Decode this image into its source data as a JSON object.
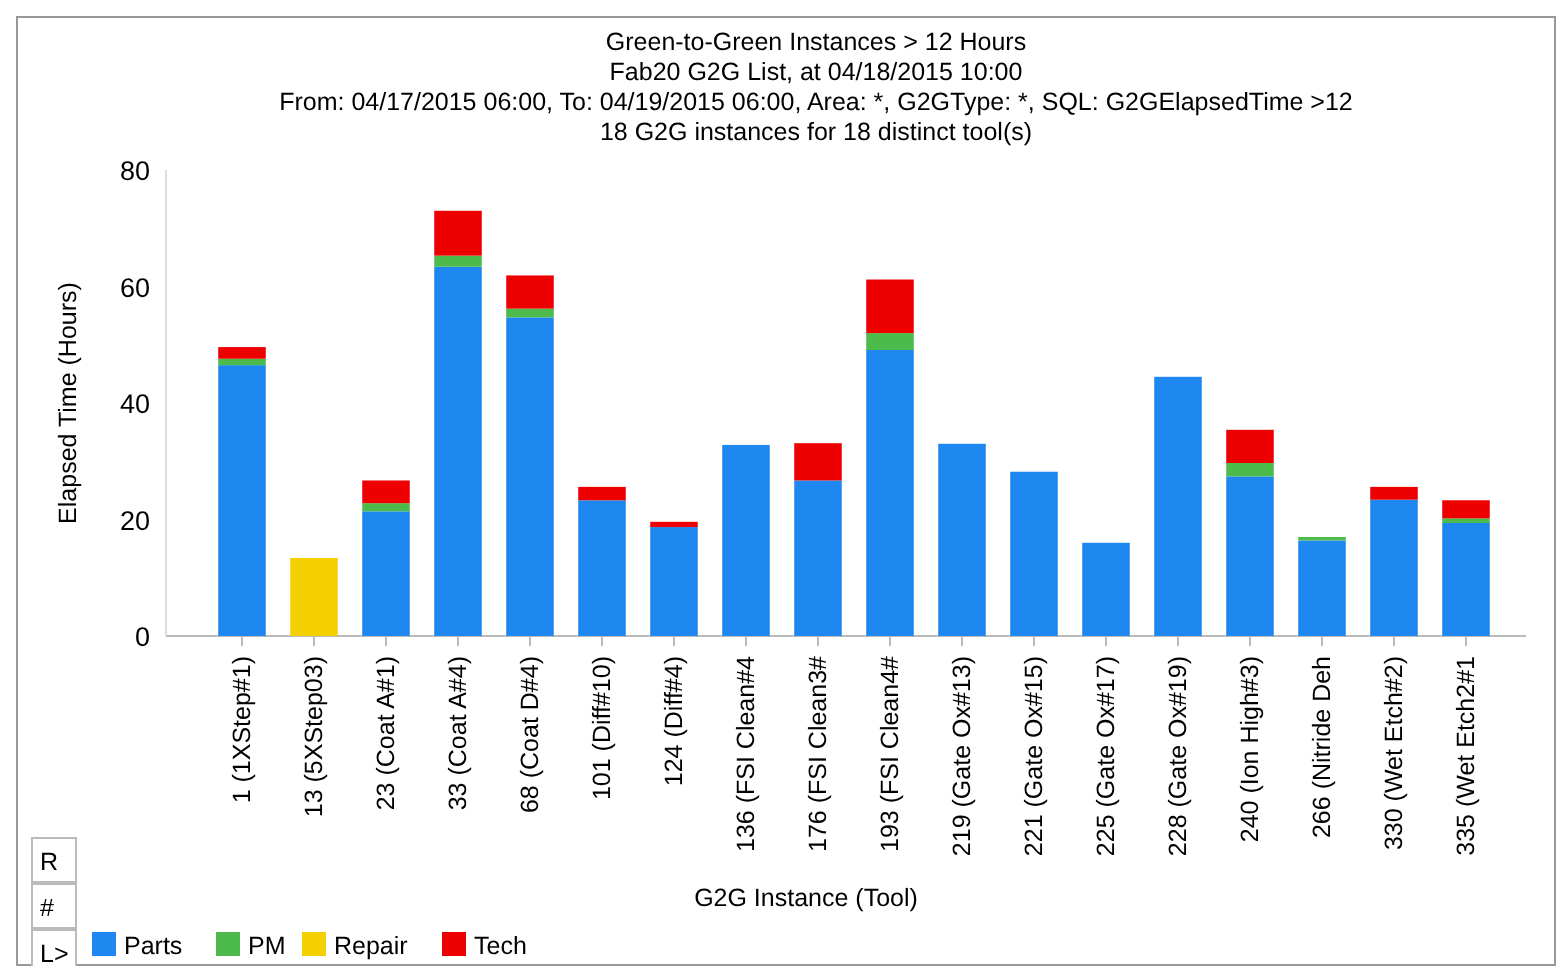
{
  "chart_data": {
    "type": "bar",
    "stacked": true,
    "title": "Green-to-Green Instances > 12 Hours",
    "subtitle": "Fab20 G2G List, at 04/18/2015 10:00\nFrom: 04/17/2015 06:00, To: 04/19/2015 06:00, Area: *, G2GType: *, SQL: G2GElapsedTime >12\n18 G2G instances for 18 distinct tool(s)",
    "xlabel": "G2G Instance (Tool)",
    "ylabel": "Elapsed Time (Hours)",
    "categories": [
      "1 (1XStep#1)",
      "13 (5XStep03)",
      "23 (Coat A#1)",
      "33 (Coat A#4)",
      "68 (Coat D#4)",
      "101 (Diff#10)",
      "124 (Diff#4)",
      "136 (FSI Clean#4",
      "176 (FSI Clean3#",
      "193 (FSI Clean4#",
      "219 (Gate Ox#13)",
      "221 (Gate Ox#15)",
      "225 (Gate Ox#17)",
      "228 (Gate Ox#19)",
      "240 (Ion High#3)",
      "266 (Nitride Deh",
      "330 (Wet Etch#2)",
      "335 (Wet Etch2#1"
    ],
    "series": [
      {
        "name": "Parts",
        "color": "#1e88f0",
        "values": [
          46.5,
          0,
          21.4,
          63.4,
          54.7,
          23.3,
          18.7,
          32.8,
          26.7,
          49.1,
          33,
          28.2,
          16,
          44.5,
          27.4,
          16.4,
          23.4,
          19.4
        ]
      },
      {
        "name": "PM",
        "color": "#4cbb4c",
        "values": [
          1.1,
          0,
          1.4,
          1.9,
          1.5,
          0,
          0,
          0,
          0,
          2.9,
          0,
          0,
          0,
          0,
          2.3,
          0.6,
          0,
          0.8
        ]
      },
      {
        "name": "Repair",
        "color": "#f5d000",
        "values": [
          0,
          13.4,
          0,
          0,
          0,
          0,
          0,
          0,
          0,
          0,
          0,
          0,
          0,
          0,
          0,
          0,
          0,
          0
        ]
      },
      {
        "name": "Tech",
        "color": "#ee0000",
        "values": [
          2,
          0,
          3.9,
          7.7,
          5.7,
          2.3,
          0.9,
          0,
          6.4,
          9.2,
          0,
          0,
          0,
          0,
          5.7,
          0,
          2.2,
          3.1
        ]
      }
    ],
    "ylim": [
      0,
      80
    ],
    "yticks": [
      0,
      20,
      40,
      60,
      80
    ],
    "legend": "bottom left",
    "annotations": [
      "R",
      "#",
      "L>"
    ]
  }
}
